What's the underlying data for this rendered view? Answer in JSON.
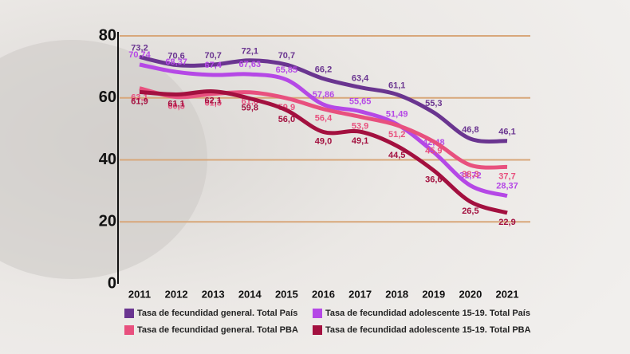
{
  "chart_data": {
    "type": "line",
    "categories": [
      "2011",
      "2012",
      "2013",
      "2014",
      "2015",
      "2016",
      "2017",
      "2018",
      "2019",
      "2020",
      "2021"
    ],
    "ylim": [
      0,
      80
    ],
    "yticks": [
      0,
      20,
      40,
      60,
      80
    ],
    "grid": true,
    "series": [
      {
        "name": "Tasa de fecundidad general. Total País",
        "color": "#6a3590",
        "values": [
          73.2,
          70.6,
          70.7,
          72.1,
          70.7,
          66.2,
          63.4,
          61.1,
          55.3,
          46.8,
          46.1
        ],
        "value_labels": [
          "73,2",
          "70,6",
          "70,7",
          "72,1",
          "70,7",
          "66,2",
          "63,4",
          "61,1",
          "55,3",
          "46,8",
          "46,1"
        ]
      },
      {
        "name": "Tasa de fecundidad adolescente 15-19. Total País",
        "color": "#b548e6",
        "values": [
          70.74,
          68.37,
          67.4,
          67.63,
          65.85,
          57.86,
          55.65,
          51.49,
          42.48,
          31.72,
          28.37
        ],
        "value_labels": [
          "70,74",
          "68,37",
          "67,4",
          "67,63",
          "65,85",
          "57,86",
          "55,65",
          "51,49",
          "42,48",
          "31,72",
          "28,37"
        ]
      },
      {
        "name": "Tasa de fecundidad general. Total PBA",
        "color": "#e8507e",
        "values": [
          63.1,
          60.3,
          61.3,
          61.8,
          59.9,
          56.4,
          53.9,
          51.2,
          45.9,
          38.3,
          37.7
        ],
        "value_labels": [
          "63,1",
          "60,3",
          "61,3",
          "61,8",
          "59,9",
          "56,4",
          "53,9",
          "51,2",
          "45,9",
          "38,3",
          "37,7"
        ]
      },
      {
        "name": "Tasa de fecundidad adolescente 15-19. Total PBA",
        "color": "#a3103f",
        "values": [
          61.9,
          61.1,
          62.1,
          59.8,
          56.0,
          49.0,
          49.1,
          44.5,
          36.6,
          26.5,
          22.9
        ],
        "value_labels": [
          "61,9",
          "61,1",
          "62,1",
          "59,8",
          "56,0",
          "49,0",
          "49,1",
          "44,5",
          "36,6",
          "26,5",
          "22,9"
        ]
      }
    ]
  }
}
